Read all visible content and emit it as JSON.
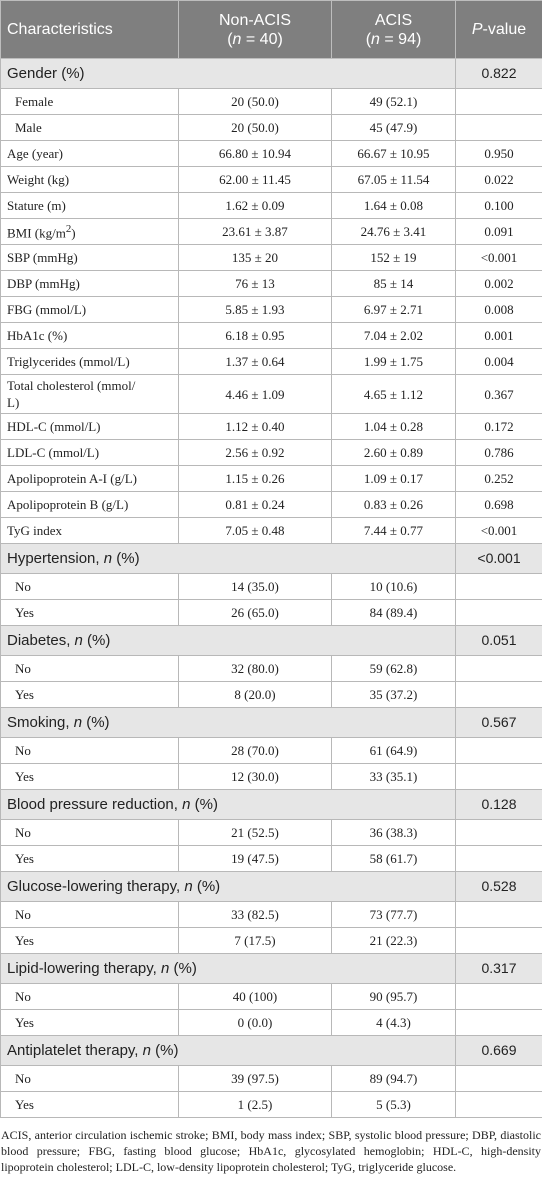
{
  "header": {
    "characteristics": "Characteristics",
    "non_acis": "Non-ACIS",
    "non_acis_n_prefix": "(",
    "non_acis_n_var": "n",
    "non_acis_n_suffix": " = 40)",
    "acis": "ACIS",
    "acis_n_prefix": "(",
    "acis_n_var": "n",
    "acis_n_suffix": " = 94)",
    "p_var": "P",
    "p_suffix": "-value"
  },
  "gender": {
    "label": "Gender (%)",
    "p": "0.822",
    "rows": [
      {
        "label": "Female",
        "non_acis": "20 (50.0)",
        "acis": "49 (52.1)"
      },
      {
        "label": "Male",
        "non_acis": "20 (50.0)",
        "acis": "45 (47.9)"
      }
    ]
  },
  "continuous": {
    "age": {
      "label": "Age (year)",
      "non_acis": "66.80 ± 10.94",
      "acis": "66.67 ± 10.95",
      "p": "0.950"
    },
    "weight": {
      "label": "Weight (kg)",
      "non_acis": "62.00 ± 11.45",
      "acis": "67.05 ± 11.54",
      "p": "0.022"
    },
    "stature": {
      "label": "Stature (m)",
      "non_acis": "1.62 ± 0.09",
      "acis": "1.64 ± 0.08",
      "p": "0.100"
    },
    "bmi": {
      "label_pre": "BMI (kg/m",
      "label_sup": "2",
      "label_post": ")",
      "non_acis": "23.61 ± 3.87",
      "acis": "24.76 ± 3.41",
      "p": "0.091"
    },
    "sbp": {
      "label": "SBP (mmHg)",
      "non_acis": "135 ± 20",
      "acis": "152 ± 19",
      "p": "<0.001"
    },
    "dbp": {
      "label": "DBP (mmHg)",
      "non_acis": "76 ± 13",
      "acis": "85 ± 14",
      "p": "0.002"
    },
    "fbg": {
      "label": "FBG (mmol/L)",
      "non_acis": "5.85 ± 1.93",
      "acis": "6.97 ± 2.71",
      "p": "0.008"
    },
    "hba1c": {
      "label": "HbA1c (%)",
      "non_acis": "6.18 ± 0.95",
      "acis": "7.04 ± 2.02",
      "p": "0.001"
    },
    "tg": {
      "label": "Triglycerides (mmol/L)",
      "non_acis": "1.37 ± 0.64",
      "acis": "1.99 ± 1.75",
      "p": "0.004"
    },
    "tc": {
      "label_line1": "Total cholesterol (mmol/",
      "label_line2": "L)",
      "non_acis": "4.46 ± 1.09",
      "acis": "4.65 ± 1.12",
      "p": "0.367"
    },
    "hdl": {
      "label": "HDL-C (mmol/L)",
      "non_acis": "1.12 ± 0.40",
      "acis": "1.04 ± 0.28",
      "p": "0.172"
    },
    "ldl": {
      "label": "LDL-C (mmol/L)",
      "non_acis": "2.56 ± 0.92",
      "acis": "2.60 ± 0.89",
      "p": "0.786"
    },
    "apoa": {
      "label": "Apolipoprotein A-I (g/L)",
      "non_acis": "1.15 ± 0.26",
      "acis": "1.09 ± 0.17",
      "p": "0.252"
    },
    "apob": {
      "label": "Apolipoprotein B (g/L)",
      "non_acis": "0.81 ± 0.24",
      "acis": "0.83 ± 0.26",
      "p": "0.698"
    },
    "tyg": {
      "label": "TyG index",
      "non_acis": "7.05 ± 0.48",
      "acis": "7.44 ± 0.77",
      "p": "<0.001"
    }
  },
  "categorical": {
    "hypertension": {
      "label_pre": "Hypertension, ",
      "label_var": "n",
      "label_post": " (%)",
      "p": "<0.001",
      "no": {
        "label": "No",
        "non_acis": "14 (35.0)",
        "acis": "10 (10.6)"
      },
      "yes": {
        "label": "Yes",
        "non_acis": "26 (65.0)",
        "acis": "84 (89.4)"
      }
    },
    "diabetes": {
      "label_pre": "Diabetes, ",
      "label_var": "n",
      "label_post": " (%)",
      "p": "0.051",
      "no": {
        "label": "No",
        "non_acis": "32 (80.0)",
        "acis": "59 (62.8)"
      },
      "yes": {
        "label": "Yes",
        "non_acis": "8 (20.0)",
        "acis": "35 (37.2)"
      }
    },
    "smoking": {
      "label_pre": "Smoking, ",
      "label_var": "n",
      "label_post": " (%)",
      "p": "0.567",
      "no": {
        "label": "No",
        "non_acis": "28 (70.0)",
        "acis": "61 (64.9)"
      },
      "yes": {
        "label": "Yes",
        "non_acis": "12 (30.0)",
        "acis": "33 (35.1)"
      }
    },
    "bp_reduction": {
      "label_pre": "Blood pressure reduction, ",
      "label_var": "n",
      "label_post": " (%)",
      "p": "0.128",
      "no": {
        "label": "No",
        "non_acis": "21 (52.5)",
        "acis": "36 (38.3)"
      },
      "yes": {
        "label": "Yes",
        "non_acis": "19 (47.5)",
        "acis": "58 (61.7)"
      }
    },
    "glucose_lowering": {
      "label_pre": "Glucose-lowering therapy, ",
      "label_var": "n",
      "label_post": " (%)",
      "p": "0.528",
      "no": {
        "label": "No",
        "non_acis": "33 (82.5)",
        "acis": "73 (77.7)"
      },
      "yes": {
        "label": "Yes",
        "non_acis": "7 (17.5)",
        "acis": "21 (22.3)"
      }
    },
    "lipid_lowering": {
      "label_pre": "Lipid-lowering therapy, ",
      "label_var": "n",
      "label_post": " (%)",
      "p": "0.317",
      "no": {
        "label": "No",
        "non_acis": "40 (100)",
        "acis": "90 (95.7)"
      },
      "yes": {
        "label": "Yes",
        "non_acis": "0 (0.0)",
        "acis": "4 (4.3)"
      }
    },
    "antiplatelet": {
      "label_pre": "Antiplatelet therapy, ",
      "label_var": "n",
      "label_post": " (%)",
      "p": "0.669",
      "no": {
        "label": "No",
        "non_acis": "39 (97.5)",
        "acis": "89 (94.7)"
      },
      "yes": {
        "label": "Yes",
        "non_acis": "1 (2.5)",
        "acis": "5 (5.3)"
      }
    }
  },
  "footnote": "ACIS, anterior circulation ischemic stroke; BMI, body mass index; SBP, systolic blood pressure; DBP, diastolic blood pressure; FBG, fasting blood glucose; HbA1c, glycosylated hemoglobin; HDL-C, high-density lipoprotein cholesterol; LDL-C, low-density lipoprotein cholesterol; TyG, triglyceride glucose."
}
